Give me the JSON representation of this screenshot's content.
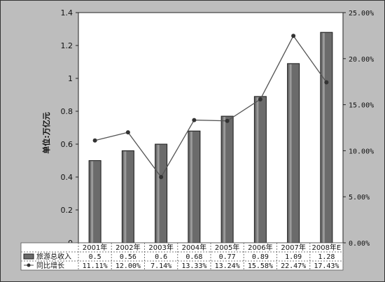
{
  "chart_data": {
    "type": "bar",
    "categories": [
      "2001年",
      "2002年",
      "2003年",
      "2004年",
      "2005年",
      "2006年",
      "2007年",
      "2008年E"
    ],
    "series": [
      {
        "name": "旅游总收入",
        "type": "bar",
        "axis": "left",
        "values": [
          0.5,
          0.56,
          0.6,
          0.68,
          0.77,
          0.89,
          1.09,
          1.28
        ],
        "labels": [
          "0.5",
          "0.56",
          "0.6",
          "0.68",
          "0.77",
          "0.89",
          "1.09",
          "1.28"
        ]
      },
      {
        "name": "同比增长",
        "type": "line",
        "axis": "right",
        "values": [
          11.11,
          12.0,
          7.14,
          13.33,
          13.24,
          15.58,
          22.47,
          17.43
        ],
        "labels": [
          "11.11%",
          "12.00%",
          "7.14%",
          "13.33%",
          "13.24%",
          "15.58%",
          "22.47%",
          "17.43%"
        ]
      }
    ],
    "ylabel": "单位:万亿元",
    "ylim": [
      0,
      1.4
    ],
    "yticks": [
      "0",
      "0.2",
      "0.4",
      "0.6",
      "0.8",
      "1",
      "1.2",
      "1.4"
    ],
    "y2lim": [
      0,
      25
    ],
    "y2ticks": [
      "0.00%",
      "5.00%",
      "10.00%",
      "15.00%",
      "20.00%",
      "25.00%"
    ],
    "grid": false,
    "legend": "data-table"
  }
}
